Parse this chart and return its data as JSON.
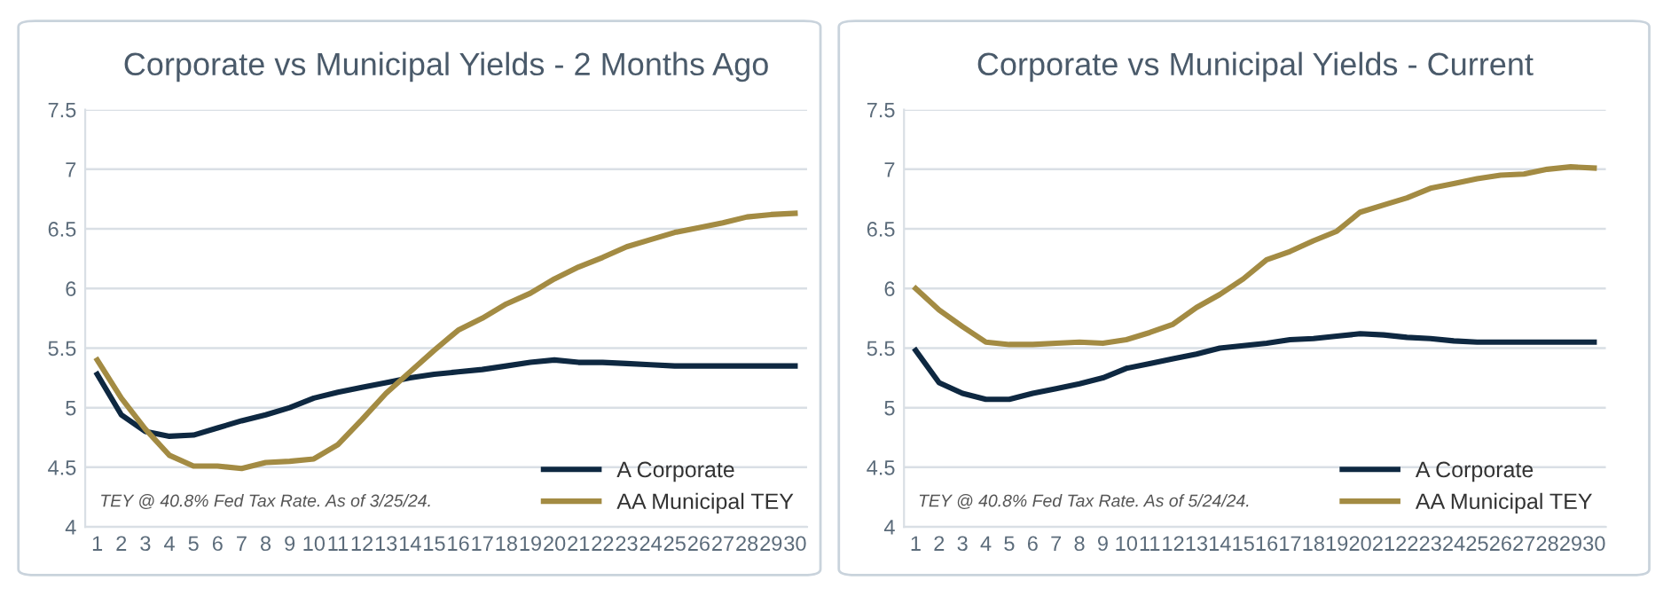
{
  "chart_data": [
    {
      "type": "line",
      "title": "Corporate vs Municipal Yields - 2 Months Ago",
      "categories": [
        "1",
        "2",
        "3",
        "4",
        "5",
        "6",
        "7",
        "8",
        "9",
        "10",
        "11",
        "12",
        "13",
        "14",
        "15",
        "16",
        "17",
        "18",
        "19",
        "20",
        "21",
        "22",
        "23",
        "24",
        "25",
        "26",
        "27",
        "28",
        "29",
        "30"
      ],
      "series": [
        {
          "name": "A Corporate",
          "color": "#0e2841",
          "values": [
            5.28,
            4.94,
            4.8,
            4.76,
            4.77,
            4.83,
            4.89,
            4.94,
            5.0,
            5.08,
            5.13,
            5.17,
            5.21,
            5.25,
            5.28,
            5.3,
            5.32,
            5.35,
            5.38,
            5.4,
            5.38,
            5.38,
            5.37,
            5.36,
            5.35,
            5.35,
            5.35,
            5.35,
            5.35,
            5.35
          ]
        },
        {
          "name": "AA Municipal TEY",
          "color": "#a38b43",
          "values": [
            5.4,
            5.08,
            4.82,
            4.6,
            4.51,
            4.51,
            4.49,
            4.54,
            4.55,
            4.57,
            4.69,
            4.9,
            5.12,
            5.3,
            5.48,
            5.65,
            5.75,
            5.87,
            5.96,
            6.08,
            6.18,
            6.26,
            6.35,
            6.41,
            6.47,
            6.51,
            6.55,
            6.6,
            6.62,
            6.63
          ]
        }
      ],
      "ylim": [
        4,
        7.5
      ],
      "yticks": [
        4,
        4.5,
        5,
        5.5,
        6,
        6.5,
        7,
        7.5
      ],
      "grid": "y",
      "legend": "bottom right",
      "marker": "none",
      "line_style": "solid",
      "annotations": [
        "TEY @ 40.8% Fed Tax Rate. As of 3/25/24."
      ]
    },
    {
      "type": "line",
      "title": "Corporate vs Municipal Yields - Current",
      "categories": [
        "1",
        "2",
        "3",
        "4",
        "5",
        "6",
        "7",
        "8",
        "9",
        "10",
        "11",
        "12",
        "13",
        "14",
        "15",
        "16",
        "17",
        "18",
        "19",
        "20",
        "21",
        "22",
        "23",
        "24",
        "25",
        "26",
        "27",
        "28",
        "29",
        "30"
      ],
      "series": [
        {
          "name": "A Corporate",
          "color": "#0e2841",
          "values": [
            5.48,
            5.21,
            5.12,
            5.07,
            5.07,
            5.12,
            5.16,
            5.2,
            5.25,
            5.33,
            5.37,
            5.41,
            5.45,
            5.5,
            5.52,
            5.54,
            5.57,
            5.58,
            5.6,
            5.62,
            5.61,
            5.59,
            5.58,
            5.56,
            5.55,
            5.55,
            5.55,
            5.55,
            5.55,
            5.55
          ]
        },
        {
          "name": "AA Municipal TEY",
          "color": "#a38b43",
          "values": [
            6.0,
            5.82,
            5.68,
            5.55,
            5.53,
            5.53,
            5.54,
            5.55,
            5.54,
            5.57,
            5.63,
            5.7,
            5.84,
            5.95,
            6.08,
            6.24,
            6.31,
            6.4,
            6.48,
            6.64,
            6.7,
            6.76,
            6.84,
            6.88,
            6.92,
            6.95,
            6.96,
            7.0,
            7.02,
            7.01
          ]
        }
      ],
      "ylim": [
        4,
        7.5
      ],
      "yticks": [
        4,
        4.5,
        5,
        5.5,
        6,
        6.5,
        7,
        7.5
      ],
      "grid": "y",
      "legend": "bottom right",
      "marker": "none",
      "line_style": "solid",
      "annotations": [
        "TEY @ 40.8% Fed Tax Rate. As of 5/24/24."
      ]
    }
  ]
}
